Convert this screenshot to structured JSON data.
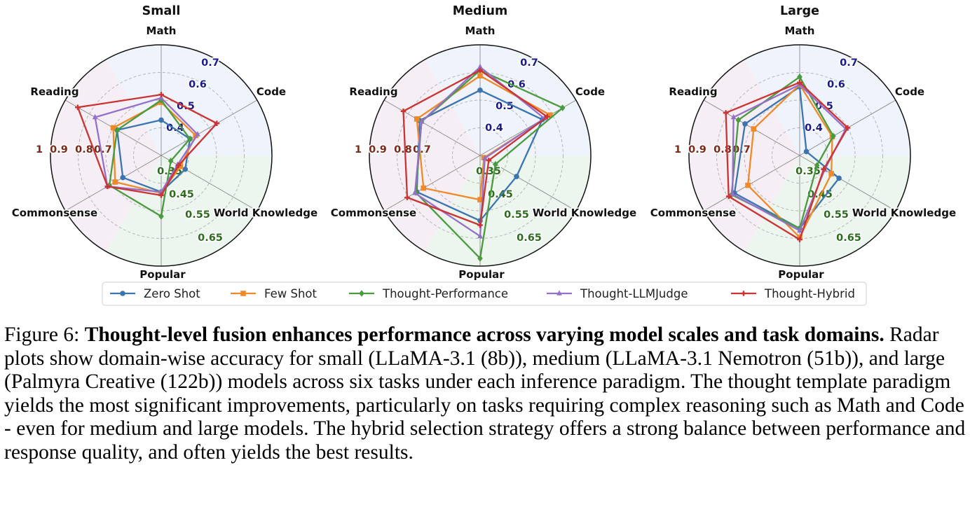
{
  "chart_data": [
    {
      "type": "radar",
      "title": "Small",
      "axes": [
        "Math",
        "Code",
        "World Knowledge",
        "Popular",
        "Commonsense",
        "Reading"
      ],
      "scales": {
        "stem": {
          "ticks": [
            "0.4",
            "0.5",
            "0.6",
            "0.7"
          ],
          "axes": [
            "Math",
            "Code"
          ],
          "color": "#1a1a8c"
        },
        "knowledge": {
          "ticks": [
            "0.35",
            "0.45",
            "0.55",
            "0.65"
          ],
          "axes": [
            "World Knowledge",
            "Popular"
          ],
          "color": "#2e6b1f"
        },
        "language": {
          "ticks": [
            "0.7",
            "0.8",
            "0.9",
            "1"
          ],
          "axes": [
            "Commonsense",
            "Reading"
          ],
          "color": "#7a2a1a"
        }
      },
      "series": [
        {
          "name": "Zero Shot",
          "values": [
            0.32,
            0.3,
            0.25,
            0.33,
            0.4,
            0.46
          ]
        },
        {
          "name": "Few Shot",
          "values": [
            0.48,
            0.36,
            0.2,
            0.34,
            0.48,
            0.5
          ]
        },
        {
          "name": "Thought-Performance",
          "values": [
            0.5,
            0.3,
            0.1,
            0.55,
            0.54,
            0.46
          ]
        },
        {
          "name": "Thought-LLMJudge",
          "values": [
            0.52,
            0.38,
            0.17,
            0.33,
            0.56,
            0.69
          ]
        },
        {
          "name": "Thought-Hybrid",
          "values": [
            0.55,
            0.58,
            0.18,
            0.36,
            0.56,
            0.87
          ]
        }
      ]
    },
    {
      "type": "radar",
      "title": "Medium",
      "axes": [
        "Math",
        "Code",
        "World Knowledge",
        "Popular",
        "Commonsense",
        "Reading"
      ],
      "scales": {
        "stem": {
          "ticks": [
            "0.4",
            "0.5",
            "0.6",
            "0.7"
          ],
          "axes": [
            "Math",
            "Code"
          ],
          "color": "#1a1a8c"
        },
        "knowledge": {
          "ticks": [
            "0.35",
            "0.45",
            "0.55",
            "0.65"
          ],
          "axes": [
            "World Knowledge",
            "Popular"
          ],
          "color": "#2e6b1f"
        },
        "language": {
          "ticks": [
            "0.7",
            "0.8",
            "0.9",
            "1"
          ],
          "axes": [
            "Commonsense",
            "Reading"
          ],
          "color": "#7a2a1a"
        }
      },
      "series": [
        {
          "name": "Zero Shot",
          "values": [
            0.59,
            0.65,
            0.38,
            0.59,
            0.66,
            0.63
          ]
        },
        {
          "name": "Few Shot",
          "values": [
            0.72,
            0.73,
            0.04,
            0.4,
            0.59,
            0.66
          ]
        },
        {
          "name": "Thought-Performance",
          "values": [
            0.77,
            0.86,
            0.16,
            0.93,
            0.67,
            0.61
          ]
        },
        {
          "name": "Thought-LLMJudge",
          "values": [
            0.8,
            0.67,
            0.05,
            0.73,
            0.68,
            0.61
          ]
        },
        {
          "name": "Thought-Hybrid",
          "values": [
            0.77,
            0.7,
            0.09,
            0.63,
            0.76,
            0.8
          ]
        }
      ]
    },
    {
      "type": "radar",
      "title": "Large",
      "axes": [
        "Math",
        "Code",
        "World Knowledge",
        "Popular",
        "Commonsense",
        "Reading"
      ],
      "scales": {
        "stem": {
          "ticks": [
            "0.4",
            "0.5",
            "0.6",
            "0.7"
          ],
          "axes": [
            "Math",
            "Code"
          ],
          "color": "#1a1a8c"
        },
        "knowledge": {
          "ticks": [
            "0.35",
            "0.45",
            "0.55",
            "0.65"
          ],
          "axes": [
            "World Knowledge",
            "Popular"
          ],
          "color": "#2e6b1f"
        },
        "language": {
          "ticks": [
            "0.7",
            "0.8",
            "0.9",
            "1"
          ],
          "axes": [
            "Commonsense",
            "Reading"
          ],
          "color": "#7a2a1a"
        }
      },
      "series": [
        {
          "name": "Zero Shot",
          "values": [
            0.62,
            0.07,
            0.41,
            0.66,
            0.68,
            0.57
          ]
        },
        {
          "name": "Few Shot",
          "values": [
            0.64,
            0.34,
            0.33,
            0.74,
            0.54,
            0.48
          ]
        },
        {
          "name": "Thought-Performance",
          "values": [
            0.71,
            0.35,
            0.18,
            0.66,
            0.71,
            0.64
          ]
        },
        {
          "name": "Thought-LLMJudge",
          "values": [
            0.64,
            0.48,
            0.26,
            0.68,
            0.7,
            0.69
          ]
        },
        {
          "name": "Thought-Hybrid",
          "values": [
            0.66,
            0.5,
            0.25,
            0.76,
            0.74,
            0.77
          ]
        }
      ]
    }
  ],
  "legend": [
    {
      "label": "Zero Shot",
      "color": "#3a75b0",
      "marker": "circle"
    },
    {
      "label": "Few Shot",
      "color": "#ef8a2a",
      "marker": "square"
    },
    {
      "label": "Thought-Performance",
      "color": "#4a9a3e",
      "marker": "diamond"
    },
    {
      "label": "Thought-LLMJudge",
      "color": "#9570c8",
      "marker": "triangle"
    },
    {
      "label": "Thought-Hybrid",
      "color": "#cc3333",
      "marker": "plus"
    }
  ],
  "sector_colors": {
    "stem": "#eef3fc",
    "knowledge": "#edf6ee",
    "language": "#f6eef5"
  },
  "caption": {
    "label": "Figure 6: ",
    "bold": "Thought-level fusion enhances performance across varying model scales and task domains.",
    "text": " Radar plots show domain-wise accuracy for small (LLaMA-3.1 (8b)), medium (LLaMA-3.1 Nemotron (51b)), and large (Palmyra Creative (122b)) models across six tasks under each inference paradigm. The thought template paradigm yields the most significant improvements, particularly on tasks requiring complex reasoning such as Math and Code - even for medium and large models. The hybrid selection strategy offers a strong balance between performance and response quality, and often yields the best results."
  }
}
